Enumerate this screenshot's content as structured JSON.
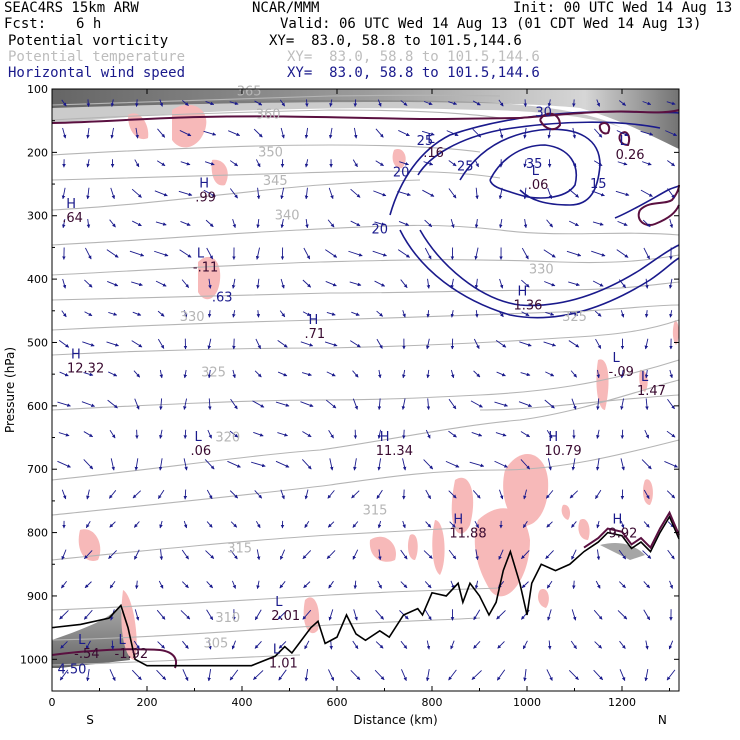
{
  "header": {
    "left_title": "SEAC4RS 15km ARW",
    "center_title": "NCAR/MMM",
    "init_text": "Init: 00 UTC Wed 14 Aug 13",
    "fcst_label": "Fcst:",
    "fcst_value": "6 h",
    "valid_text": "Valid: 06 UTC Wed 14 Aug 13 (01 CDT Wed 14 Aug 13)",
    "fields": [
      {
        "name": "Potential vorticity",
        "xy": "XY=  83.0, 58.8 to 101.5,144.6",
        "color": "#000000"
      },
      {
        "name": "Potential temperature",
        "xy": "XY=  83.0, 58.8 to 101.5,144.6",
        "color": "#bdbdbd"
      },
      {
        "name": "Horizontal wind speed",
        "xy": "XY=  83.0, 58.8 to 101.5,144.6",
        "color": "#1a1a8c"
      }
    ]
  },
  "chart_data": {
    "type": "cross-section",
    "xlabel": "Distance (km)",
    "ylabel": "Pressure (hPa)",
    "xlim": [
      0,
      1320
    ],
    "ylim": [
      1050,
      100
    ],
    "x_ticks": [
      0,
      200,
      400,
      600,
      800,
      1000,
      1200
    ],
    "y_ticks": [
      100,
      200,
      300,
      400,
      500,
      600,
      700,
      800,
      900,
      1000
    ],
    "endpoint_labels": {
      "left": "S",
      "right": "N"
    },
    "colors": {
      "pv_fill": "#f7b9b9",
      "theta": "#b5b5b5",
      "wind": "#1a1a8c",
      "terrain": "#000000",
      "pv_contour": "#5a1040"
    },
    "terrain": [
      [
        0,
        950
      ],
      [
        60,
        945
      ],
      [
        120,
        935
      ],
      [
        145,
        915
      ],
      [
        160,
        950
      ],
      [
        175,
        1000
      ],
      [
        200,
        1010
      ],
      [
        420,
        1010
      ],
      [
        470,
        995
      ],
      [
        490,
        980
      ],
      [
        505,
        990
      ],
      [
        520,
        975
      ],
      [
        545,
        950
      ],
      [
        560,
        940
      ],
      [
        575,
        975
      ],
      [
        600,
        965
      ],
      [
        620,
        930
      ],
      [
        640,
        960
      ],
      [
        660,
        970
      ],
      [
        690,
        955
      ],
      [
        710,
        965
      ],
      [
        740,
        930
      ],
      [
        770,
        920
      ],
      [
        780,
        930
      ],
      [
        800,
        895
      ],
      [
        830,
        900
      ],
      [
        855,
        880
      ],
      [
        865,
        910
      ],
      [
        880,
        880
      ],
      [
        900,
        900
      ],
      [
        920,
        930
      ],
      [
        935,
        910
      ],
      [
        950,
        860
      ],
      [
        965,
        830
      ],
      [
        985,
        880
      ],
      [
        1000,
        930
      ],
      [
        1010,
        880
      ],
      [
        1030,
        850
      ],
      [
        1060,
        860
      ],
      [
        1090,
        850
      ],
      [
        1120,
        830
      ],
      [
        1150,
        815
      ],
      [
        1170,
        800
      ],
      [
        1200,
        805
      ],
      [
        1220,
        825
      ],
      [
        1240,
        815
      ],
      [
        1260,
        830
      ],
      [
        1280,
        800
      ],
      [
        1300,
        775
      ],
      [
        1320,
        810
      ]
    ],
    "theta_labels": [
      {
        "text": "365",
        "x": 415,
        "p": 104
      },
      {
        "text": "360",
        "x": 455,
        "p": 140
      },
      {
        "text": "350",
        "x": 460,
        "p": 200
      },
      {
        "text": "345",
        "x": 470,
        "p": 245
      },
      {
        "text": "340",
        "x": 495,
        "p": 300
      },
      {
        "text": "330",
        "x": 1030,
        "p": 385
      },
      {
        "text": "330",
        "x": 295,
        "p": 460
      },
      {
        "text": "325",
        "x": 1100,
        "p": 460
      },
      {
        "text": "325",
        "x": 340,
        "p": 547
      },
      {
        "text": "320",
        "x": 370,
        "p": 650
      },
      {
        "text": "315",
        "x": 680,
        "p": 765
      },
      {
        "text": "315",
        "x": 395,
        "p": 825
      },
      {
        "text": "310",
        "x": 370,
        "p": 935
      },
      {
        "text": "305",
        "x": 345,
        "p": 975
      }
    ],
    "wind_labels": [
      {
        "text": "25",
        "x": 785,
        "p": 182
      },
      {
        "text": "30",
        "x": 1035,
        "p": 137
      },
      {
        "text": "20",
        "x": 735,
        "p": 232
      },
      {
        "text": "25",
        "x": 870,
        "p": 222
      },
      {
        "text": "35",
        "x": 1015,
        "p": 218
      },
      {
        "text": "20",
        "x": 690,
        "p": 322
      },
      {
        "text": "15",
        "x": 1150,
        "p": 250
      }
    ],
    "extrema": [
      {
        "type": "H",
        "value": ".64",
        "x": 30,
        "p": 297
      },
      {
        "type": "H",
        "value": ".99",
        "x": 310,
        "p": 265
      },
      {
        "type": "L",
        "value": "-.11",
        "x": 305,
        "p": 375
      },
      {
        "type": "",
        "value": ".63",
        "x": 345,
        "p": 423
      },
      {
        "type": "H",
        "value": ".71",
        "x": 540,
        "p": 480
      },
      {
        "type": "H",
        "value": "12.32",
        "x": 40,
        "p": 535
      },
      {
        "type": "L",
        "value": ".16",
        "x": 790,
        "p": 195
      },
      {
        "type": "L",
        "value": ".06",
        "x": 1010,
        "p": 245
      },
      {
        "type": "L",
        "value": "0.26",
        "x": 1195,
        "p": 198
      },
      {
        "type": "H",
        "value": "1.36",
        "x": 980,
        "p": 435
      },
      {
        "type": "L",
        "value": "-.09",
        "x": 1180,
        "p": 540
      },
      {
        "type": "L",
        "value": "1.47",
        "x": 1240,
        "p": 570
      },
      {
        "type": "L",
        "value": ".06",
        "x": 300,
        "p": 665
      },
      {
        "type": "H",
        "value": "11.34",
        "x": 690,
        "p": 665
      },
      {
        "type": "H",
        "value": "10.79",
        "x": 1045,
        "p": 665
      },
      {
        "type": "H",
        "value": "11.88",
        "x": 845,
        "p": 795
      },
      {
        "type": "H",
        "value": "9.92",
        "x": 1180,
        "p": 795
      },
      {
        "type": "L",
        "value": "2.01",
        "x": 470,
        "p": 925
      },
      {
        "type": "L",
        "value": "1.01",
        "x": 465,
        "p": 1000
      },
      {
        "type": "L",
        "value": "-.54",
        "x": 55,
        "p": 985
      },
      {
        "type": "L",
        "value": "-1.92",
        "x": 140,
        "p": 985
      },
      {
        "type": "",
        "value": "4.50",
        "x": 20,
        "p": 1010
      }
    ]
  }
}
